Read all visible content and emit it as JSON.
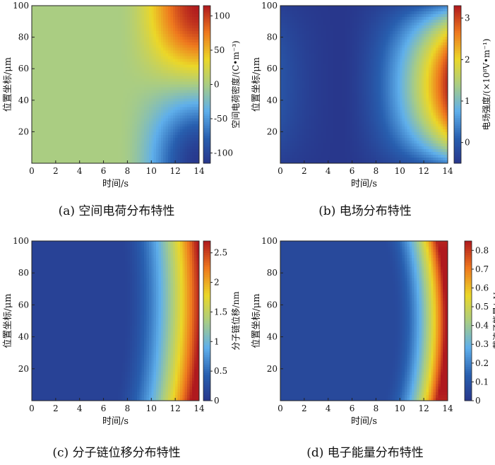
{
  "chart_data": [
    {
      "type": "heatmap",
      "caption": "(a) 空间电荷分布特性",
      "xlabel": "时间/s",
      "ylabel": "位置坐标/μm",
      "xticks": [
        0,
        2,
        4,
        6,
        8,
        10,
        12,
        14
      ],
      "yticks": [
        20,
        40,
        60,
        80,
        100
      ],
      "xlim": [
        0,
        14
      ],
      "ylim": [
        0,
        100
      ],
      "colorbar": {
        "label": "空间电荷密度/(C•m⁻³)",
        "ticks": [
          -100,
          -50,
          0,
          50,
          100
        ],
        "range": [
          -115,
          115
        ]
      },
      "field": {
        "shape": "charge",
        "front_start_s": 7.0,
        "max_abs": 115
      }
    },
    {
      "type": "heatmap",
      "caption": "(b) 电场分布特性",
      "xlabel": "时间/s",
      "ylabel": "位置坐标/μm",
      "xticks": [
        0,
        2,
        4,
        6,
        8,
        10,
        12,
        14
      ],
      "yticks": [
        20,
        40,
        60,
        80,
        100
      ],
      "xlim": [
        0,
        14
      ],
      "ylim": [
        0,
        100
      ],
      "colorbar": {
        "label": "电场强度/(×10⁸V•m⁻¹)",
        "ticks": [
          0,
          1,
          2,
          3
        ],
        "range": [
          -0.5,
          3.3
        ]
      },
      "field": {
        "shape": "efield",
        "min_at_s": 5.0,
        "peak": 3.2
      }
    },
    {
      "type": "heatmap",
      "caption": "(c) 分子链位移分布特性",
      "xlabel": "时间/s",
      "ylabel": "位置坐标/μm",
      "xticks": [
        0,
        2,
        4,
        6,
        8,
        10,
        12,
        14
      ],
      "yticks": [
        20,
        40,
        60,
        80,
        100
      ],
      "xlim": [
        0,
        14
      ],
      "ylim": [
        0,
        100
      ],
      "colorbar": {
        "label": "分子链位移/nm",
        "ticks": [
          0,
          0.5,
          1.0,
          1.5,
          2.0,
          2.5
        ],
        "range": [
          0,
          2.7
        ]
      },
      "field": {
        "shape": "displacement",
        "peak": 2.7
      }
    },
    {
      "type": "heatmap",
      "caption": "(d) 电子能量分布特性",
      "xlabel": "时间/s",
      "ylabel": "位置坐标/μm",
      "xticks": [
        0,
        2,
        4,
        6,
        8,
        10,
        12,
        14
      ],
      "yticks": [
        20,
        40,
        60,
        80,
        100
      ],
      "xlim": [
        0,
        14
      ],
      "ylim": [
        0,
        100
      ],
      "colorbar": {
        "label": "载流子能量/eV",
        "ticks": [
          0,
          0.1,
          0.2,
          0.3,
          0.4,
          0.5,
          0.6,
          0.7,
          0.8
        ],
        "range": [
          0,
          0.85
        ]
      },
      "field": {
        "shape": "energy",
        "peak": 0.85
      }
    }
  ]
}
